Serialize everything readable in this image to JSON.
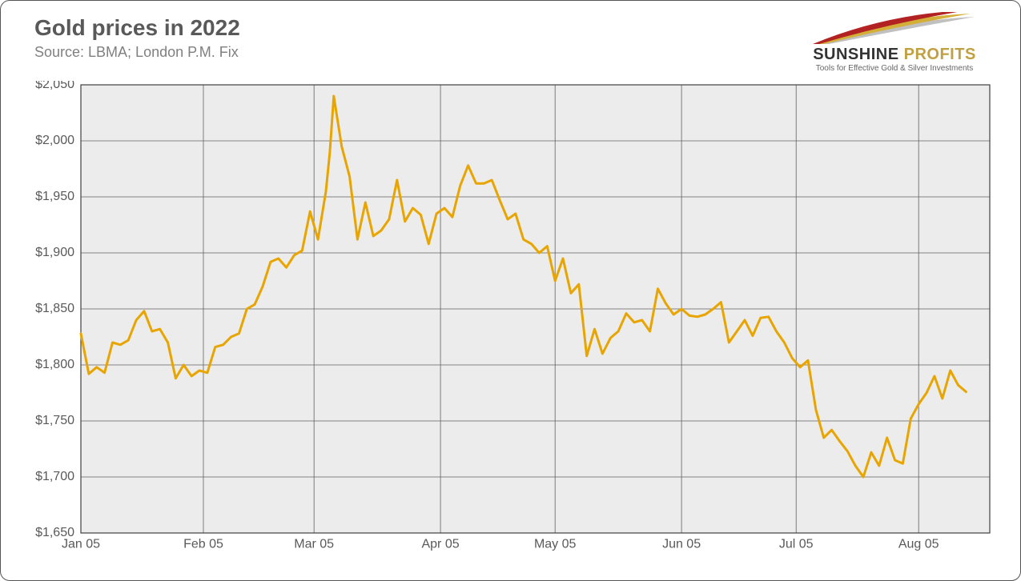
{
  "header": {
    "title": "Gold prices in 2022",
    "subtitle": "Source: LBMA; London P.M. Fix"
  },
  "logo": {
    "brand_line1": "SUNSHINE",
    "brand_line2": "PROFITS",
    "tagline": "Tools for Effective Gold & Silver Investments",
    "swoosh_colors": [
      "#b22222",
      "#d4af37",
      "#c0c0c0"
    ]
  },
  "chart": {
    "type": "line",
    "line_color": "#e8a500",
    "line_width": 3,
    "plot_background": "#ececec",
    "grid_color": "#606060",
    "grid_width": 0.8,
    "axis_color": "#404040",
    "y": {
      "min": 1650,
      "max": 2050,
      "tick_step": 50,
      "tick_labels": [
        "$1,650",
        "$1,700",
        "$1,750",
        "$1,800",
        "$1,850",
        "$1,900",
        "$1,950",
        "$2,000",
        "$2,050"
      ],
      "label_fontsize": 16,
      "label_color": "#595959"
    },
    "x": {
      "min": 0,
      "max": 230,
      "ticks_at": [
        0,
        31,
        59,
        91,
        120,
        152,
        181,
        212
      ],
      "tick_labels": [
        "Jan 05",
        "Feb 05",
        "Mar 05",
        "Apr 05",
        "May 05",
        "Jun 05",
        "Jul 05",
        "Aug 05"
      ],
      "label_fontsize": 16,
      "label_color": "#595959"
    },
    "series": [
      {
        "name": "gold-price",
        "x": [
          0,
          2,
          4,
          6,
          8,
          10,
          12,
          14,
          16,
          18,
          20,
          22,
          24,
          26,
          28,
          30,
          32,
          34,
          36,
          38,
          40,
          42,
          44,
          46,
          48,
          50,
          52,
          54,
          56,
          58,
          60,
          62,
          63,
          64,
          66,
          68,
          70,
          72,
          74,
          76,
          78,
          80,
          82,
          84,
          86,
          88,
          90,
          92,
          94,
          96,
          98,
          100,
          102,
          104,
          106,
          108,
          110,
          112,
          114,
          116,
          118,
          120,
          122,
          124,
          126,
          128,
          130,
          132,
          134,
          136,
          138,
          140,
          142,
          144,
          146,
          148,
          150,
          152,
          154,
          156,
          158,
          160,
          162,
          164,
          166,
          168,
          170,
          172,
          174,
          176,
          178,
          180,
          182,
          184,
          186,
          188,
          190,
          192,
          194,
          196,
          198,
          200,
          202,
          204,
          206,
          208,
          210,
          212,
          214,
          216,
          218,
          220,
          222,
          224
        ],
        "y": [
          1828,
          1792,
          1798,
          1793,
          1820,
          1818,
          1822,
          1840,
          1848,
          1830,
          1832,
          1820,
          1788,
          1800,
          1790,
          1795,
          1793,
          1816,
          1818,
          1825,
          1828,
          1850,
          1854,
          1870,
          1892,
          1895,
          1887,
          1898,
          1902,
          1937,
          1912,
          1955,
          1990,
          2040,
          1995,
          1968,
          1912,
          1945,
          1915,
          1920,
          1930,
          1965,
          1928,
          1940,
          1934,
          1908,
          1935,
          1940,
          1932,
          1960,
          1978,
          1962,
          1962,
          1965,
          1947,
          1930,
          1935,
          1912,
          1908,
          1900,
          1906,
          1875,
          1895,
          1864,
          1872,
          1808,
          1832,
          1810,
          1824,
          1830,
          1846,
          1838,
          1840,
          1830,
          1868,
          1855,
          1845,
          1850,
          1844,
          1843,
          1845,
          1850,
          1856,
          1820,
          1830,
          1840,
          1826,
          1842,
          1843,
          1830,
          1820,
          1806,
          1798,
          1804,
          1760,
          1735,
          1742,
          1732,
          1723,
          1710,
          1700,
          1722,
          1710,
          1735,
          1715,
          1712,
          1752,
          1765,
          1775,
          1790,
          1770,
          1795,
          1782,
          1776
        ]
      }
    ]
  }
}
